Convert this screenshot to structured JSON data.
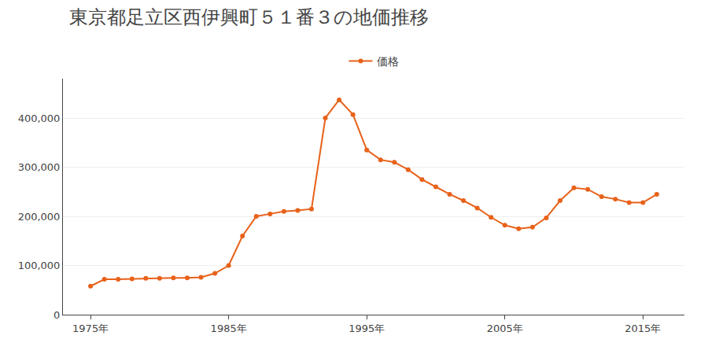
{
  "chart_data": {
    "type": "line",
    "title": "東京都足立区西伊興町５１番３の地価推移",
    "x": [
      1975,
      1976,
      1977,
      1978,
      1979,
      1980,
      1981,
      1982,
      1983,
      1984,
      1985,
      1986,
      1987,
      1988,
      1989,
      1990,
      1991,
      1992,
      1993,
      1994,
      1995,
      1996,
      1997,
      1998,
      1999,
      2000,
      2001,
      2002,
      2003,
      2004,
      2005,
      2006,
      2007,
      2008,
      2009,
      2010,
      2011,
      2012,
      2013,
      2014,
      2015,
      2016
    ],
    "series": [
      {
        "name": "価格",
        "color": "#e8621a",
        "marker": "circle",
        "values": [
          58000,
          72000,
          72000,
          73000,
          74000,
          74000,
          75000,
          75000,
          76000,
          84000,
          100000,
          160000,
          200000,
          205000,
          210000,
          212000,
          215000,
          400000,
          437000,
          407000,
          335000,
          315000,
          310000,
          295000,
          275000,
          260000,
          245000,
          232000,
          217000,
          198000,
          182000,
          175000,
          178000,
          197000,
          232000,
          258000,
          255000,
          240000,
          235000,
          228000,
          228000,
          245000
        ]
      }
    ],
    "xlim": [
      1973,
      2018
    ],
    "xticks": [
      {
        "value": 1975,
        "label": "1975年"
      },
      {
        "value": 1985,
        "label": "1985年"
      },
      {
        "value": 1995,
        "label": "1995年"
      },
      {
        "value": 2005,
        "label": "2005年"
      },
      {
        "value": 2015,
        "label": "2015年"
      }
    ],
    "ylim": [
      0,
      480000
    ],
    "yticks": [
      0,
      {
        "value": 100000,
        "label": "100,000"
      },
      {
        "value": 200000,
        "label": "200,000"
      },
      {
        "value": 300000,
        "label": "300,000"
      },
      {
        "value": 400000,
        "label": "400,000"
      }
    ],
    "grid": true,
    "legend": "top"
  }
}
